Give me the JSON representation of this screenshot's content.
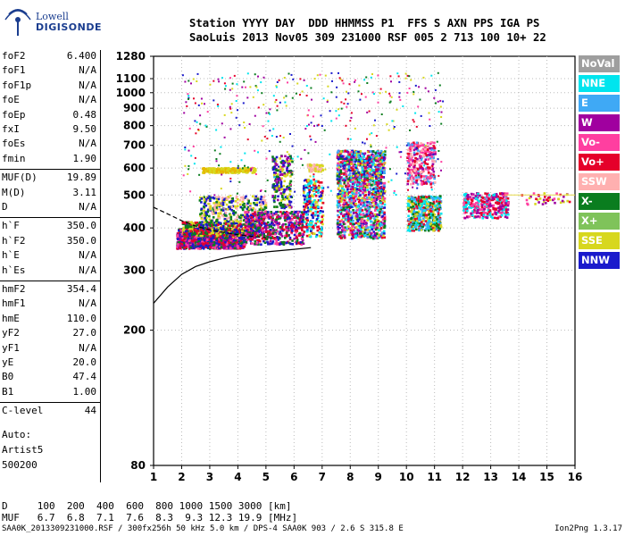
{
  "logo": {
    "line1": "Lowell",
    "line2": "DIGISONDE"
  },
  "header": {
    "row1": "Station YYYY DAY  DDD HHMMSS P1  FFS S AXN PPS IGA PS",
    "row2": "SaoLuis 2013 Nov05 309 231000 RSF 005 2 713 100 10+ 22"
  },
  "params": [
    {
      "k": "foF2",
      "v": "6.400"
    },
    {
      "k": "foF1",
      "v": "N/A"
    },
    {
      "k": "foF1p",
      "v": "N/A"
    },
    {
      "k": "foE",
      "v": "N/A"
    },
    {
      "k": "foEp",
      "v": "0.48"
    },
    {
      "k": "fxI",
      "v": "9.50"
    },
    {
      "k": "foEs",
      "v": "N/A"
    },
    {
      "k": "fmin",
      "v": "1.90"
    },
    {
      "k": "MUF(D)",
      "v": "19.89"
    },
    {
      "k": "M(D)",
      "v": "3.11"
    },
    {
      "k": "D",
      "v": "N/A"
    },
    {
      "k": "h`F",
      "v": "350.0"
    },
    {
      "k": "h`F2",
      "v": "350.0"
    },
    {
      "k": "h`E",
      "v": "N/A"
    },
    {
      "k": "h`Es",
      "v": "N/A"
    },
    {
      "k": "hmF2",
      "v": "354.4"
    },
    {
      "k": "hmF1",
      "v": "N/A"
    },
    {
      "k": "hmE",
      "v": "110.0"
    },
    {
      "k": "yF2",
      "v": "27.0"
    },
    {
      "k": "yF1",
      "v": "N/A"
    },
    {
      "k": "yE",
      "v": "20.0"
    },
    {
      "k": "B0",
      "v": "47.4"
    },
    {
      "k": "B1",
      "v": "1.00"
    },
    {
      "k": "C-level",
      "v": "44"
    }
  ],
  "auto": {
    "line1": "Auto:",
    "line2": "Artist5",
    "line3": "500200"
  },
  "legend": [
    {
      "label": "NoVal",
      "color": "#9e9e9e"
    },
    {
      "label": "NNE",
      "color": "#00e5ee"
    },
    {
      "label": "E",
      "color": "#3fa9f5"
    },
    {
      "label": "W",
      "color": "#a0009f"
    },
    {
      "label": "Vo-",
      "color": "#ff3fa0"
    },
    {
      "label": "Vo+",
      "color": "#e5002a"
    },
    {
      "label": "SSW",
      "color": "#ffb0b0"
    },
    {
      "label": "X-",
      "color": "#0a7d1f"
    },
    {
      "label": "X+",
      "color": "#7fc35a"
    },
    {
      "label": "SSE",
      "color": "#d7d71e"
    },
    {
      "label": "NNW",
      "color": "#1a1acc"
    }
  ],
  "dtable": {
    "row1": "D     100  200  400  600  800 1000 1500 3000 [km]",
    "row2": "MUF   6.7  6.8  7.1  7.6  8.3  9.3 12.3 19.9 [MHz]"
  },
  "footer": {
    "left": "SAA0K_2013309231000.RSF / 300fx256h 50 kHz 5.0 km / DPS-4 SAA0K 903 / 2.6 S 315.8 E",
    "right": "Ion2Png 1.3.17"
  },
  "chart_data": {
    "type": "scatter",
    "title": "",
    "xlabel": "",
    "ylabel": "",
    "xlim": [
      1,
      16
    ],
    "ylim": [
      80,
      1280
    ],
    "yscale": "log",
    "xticks": [
      1,
      2,
      3,
      4,
      5,
      6,
      7,
      8,
      9,
      10,
      11,
      12,
      13,
      14,
      15,
      16
    ],
    "yticks": [
      80,
      200,
      300,
      400,
      500,
      600,
      700,
      800,
      900,
      1000,
      1100,
      1280
    ],
    "grid": true,
    "legend_position": "right",
    "clusters": [
      {
        "x": [
          1.8,
          4.2
        ],
        "y": [
          350,
          400
        ],
        "colors": [
          "#e5002a",
          "#ff3fa0",
          "#a0009f",
          "#0a7d1f",
          "#1a1acc"
        ],
        "n": 1400
      },
      {
        "x": [
          2.0,
          4.8
        ],
        "y": [
          380,
          420
        ],
        "colors": [
          "#0a7d1f",
          "#d7d71e",
          "#e5002a",
          "#1a1acc"
        ],
        "n": 500
      },
      {
        "x": [
          2.6,
          5.0
        ],
        "y": [
          420,
          500
        ],
        "colors": [
          "#d7d71e",
          "#0a7d1f",
          "#1a1acc",
          "#ffb0b0"
        ],
        "n": 350
      },
      {
        "x": [
          2.7,
          4.6
        ],
        "y": [
          585,
          605
        ],
        "colors": [
          "#d7d71e",
          "#e6b800"
        ],
        "n": 220
      },
      {
        "x": [
          4.2,
          6.3
        ],
        "y": [
          360,
          450
        ],
        "colors": [
          "#e5002a",
          "#ff3fa0",
          "#0a7d1f",
          "#1a1acc",
          "#a0009f"
        ],
        "n": 550
      },
      {
        "x": [
          5.2,
          5.9
        ],
        "y": [
          460,
          660
        ],
        "colors": [
          "#1a1acc",
          "#d7d71e",
          "#a0009f",
          "#0a7d1f"
        ],
        "n": 200
      },
      {
        "x": [
          6.3,
          7.0
        ],
        "y": [
          380,
          560
        ],
        "colors": [
          "#1a1acc",
          "#e5002a",
          "#d7d71e",
          "#00e5ee"
        ],
        "n": 260
      },
      {
        "x": [
          6.4,
          7.0
        ],
        "y": [
          590,
          620
        ],
        "colors": [
          "#ffb0b0",
          "#d7d71e"
        ],
        "n": 60
      },
      {
        "x": [
          7.5,
          9.2
        ],
        "y": [
          375,
          680
        ],
        "colors": [
          "#1a1acc",
          "#3fa9f5",
          "#00e5ee",
          "#d7d71e",
          "#e5002a",
          "#ff3fa0",
          "#0a7d1f",
          "#a0009f"
        ],
        "n": 1500
      },
      {
        "x": [
          10.0,
          11.2
        ],
        "y": [
          395,
          500
        ],
        "colors": [
          "#3fa9f5",
          "#00e5ee",
          "#d7d71e",
          "#e5002a",
          "#0a7d1f"
        ],
        "n": 450
      },
      {
        "x": [
          10.0,
          11.0
        ],
        "y": [
          540,
          720
        ],
        "colors": [
          "#e5002a",
          "#ff3fa0",
          "#a0009f",
          "#ffb0b0",
          "#3fa9f5"
        ],
        "n": 300
      },
      {
        "x": [
          12.0,
          13.6
        ],
        "y": [
          430,
          510
        ],
        "colors": [
          "#ff3fa0",
          "#e5002a",
          "#00e5ee",
          "#a0009f"
        ],
        "n": 350
      },
      {
        "x": [
          14.0,
          15.8
        ],
        "y": [
          470,
          510
        ],
        "colors": [
          "#ff3fa0",
          "#a0009f",
          "#e5002a",
          "#d7d71e"
        ],
        "n": 40
      }
    ],
    "fit_curve_lower": {
      "x": [
        1.0,
        1.5,
        2.0,
        2.5,
        3.0,
        3.5,
        4.0,
        5.0,
        6.0,
        6.6
      ],
      "y": [
        240,
        268,
        292,
        308,
        318,
        326,
        332,
        340,
        346,
        350
      ]
    },
    "fit_curve_upper": {
      "x": [
        1.0,
        1.5,
        2.0,
        2.5,
        3.0,
        3.5,
        4.0,
        4.5,
        5.0
      ],
      "y": [
        460,
        440,
        420,
        405,
        395,
        388,
        382,
        378,
        374
      ]
    }
  }
}
